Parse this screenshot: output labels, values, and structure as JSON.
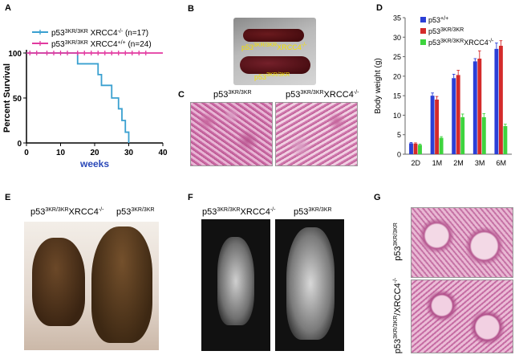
{
  "panels": {
    "A": {
      "letter": "A",
      "legend": [
        {
          "main": "p53",
          "sup": "3KR/3KR",
          "rest": " XRCC4",
          "sup2": "-/-",
          "n": " (n=17)",
          "color": "#3aa0d0"
        },
        {
          "main": "p53",
          "sup": "3KR/3KR",
          "rest": " XRCC4",
          "sup2": "+/+",
          "n": " (n=24)",
          "color": "#e23aa0"
        }
      ]
    },
    "B": {
      "letter": "B",
      "label_top": "p53",
      "label_top_sup": "3KR/3KR",
      "label_top_rest": "XRCC4",
      "label_top_sup2": "-/-",
      "label_bot": "p53",
      "label_bot_sup": "3KR/3KR"
    },
    "C": {
      "letter": "C",
      "left_main": "p53",
      "left_sup": "3KR/3KR",
      "right_main": "p53",
      "right_sup": "3KR/3KR",
      "right_rest": "XRCC4",
      "right_sup2": "-/-"
    },
    "D": {
      "letter": "D",
      "legend": [
        {
          "main": "p53",
          "sup": "+/+",
          "rest": "",
          "sup2": "",
          "color": "#2b3fd6"
        },
        {
          "main": "p53",
          "sup": "3KR/3KR",
          "rest": "",
          "sup2": "",
          "color": "#d42a2a"
        },
        {
          "main": "p53",
          "sup": "3KR/3KR",
          "rest": "XRCC4",
          "sup2": "-/-",
          "color": "#3ed43e"
        }
      ]
    },
    "E": {
      "letter": "E",
      "left_main": "p53",
      "left_sup": "3KR/3KR",
      "left_rest": "XRCC4",
      "left_sup2": "-/-",
      "right_main": "p53",
      "right_sup": "3KR/3KR"
    },
    "F": {
      "letter": "F",
      "left_main": "p53",
      "left_sup": "3KR/3KR",
      "left_rest": "XRCC4",
      "left_sup2": "-/-",
      "right_main": "p53",
      "right_sup": "3KR/3KR"
    },
    "G": {
      "letter": "G",
      "top_main": "p53",
      "top_sup": "3KR/3KR",
      "bot_main": "p53",
      "bot_sup": "3KR/3KR",
      "bot_rest": "/XRCC4",
      "bot_sup2": "-/-"
    }
  },
  "chart_data": [
    {
      "type": "line",
      "title": "",
      "xlabel": "weeks",
      "ylabel": "Percent Survival",
      "xlim": [
        0,
        40
      ],
      "ylim": [
        0,
        100
      ],
      "xticks": [
        0,
        10,
        20,
        30,
        40
      ],
      "yticks": [
        0,
        50,
        100
      ],
      "series": [
        {
          "name": "p53 3KR/3KR XRCC4 -/-",
          "step": true,
          "color": "#3aa0d0",
          "x": [
            0,
            15,
            15,
            21,
            21,
            22,
            22,
            23,
            23,
            25,
            25,
            27,
            27,
            28,
            28,
            29,
            29,
            30,
            30
          ],
          "y": [
            100,
            100,
            88,
            88,
            76,
            76,
            64,
            64,
            64,
            64,
            50,
            50,
            38,
            38,
            25,
            25,
            12,
            12,
            0
          ]
        },
        {
          "name": "p53 3KR/3KR XRCC4 +/+",
          "step": true,
          "color": "#e23aa0",
          "x": [
            0,
            40
          ],
          "y": [
            100,
            100
          ],
          "censor": [
            1,
            3,
            6,
            8,
            10,
            12,
            15,
            17,
            19,
            21,
            23,
            25,
            27,
            29,
            31,
            33,
            35
          ]
        }
      ]
    },
    {
      "type": "bar",
      "title": "",
      "xlabel": "",
      "ylabel": "Body weight (g)",
      "ylim": [
        0,
        35
      ],
      "yticks": [
        0,
        5,
        10,
        15,
        20,
        25,
        30,
        35
      ],
      "ytick_labels": [
        "0",
        "5",
        "10",
        "15",
        "20",
        "25",
        "30",
        "35"
      ],
      "categories": [
        "2D",
        "1M",
        "2M",
        "3M",
        "6M"
      ],
      "series": [
        {
          "name": "p53 +/+",
          "color": "#2b3fd6",
          "values": [
            2.8,
            15.0,
            19.5,
            23.8,
            27.0
          ],
          "err": [
            0.2,
            0.7,
            1.0,
            0.7,
            1.5
          ]
        },
        {
          "name": "p53 3KR/3KR",
          "color": "#d42a2a",
          "values": [
            2.7,
            14.0,
            20.3,
            24.5,
            27.8
          ],
          "err": [
            0.2,
            0.8,
            1.2,
            2.0,
            1.3
          ]
        },
        {
          "name": "p53 3KR/3KR XRCC4 -/-",
          "color": "#3ed43e",
          "values": [
            2.4,
            4.2,
            9.5,
            9.5,
            7.2
          ],
          "err": [
            0.2,
            0.3,
            0.8,
            0.9,
            0.5
          ]
        }
      ]
    }
  ]
}
